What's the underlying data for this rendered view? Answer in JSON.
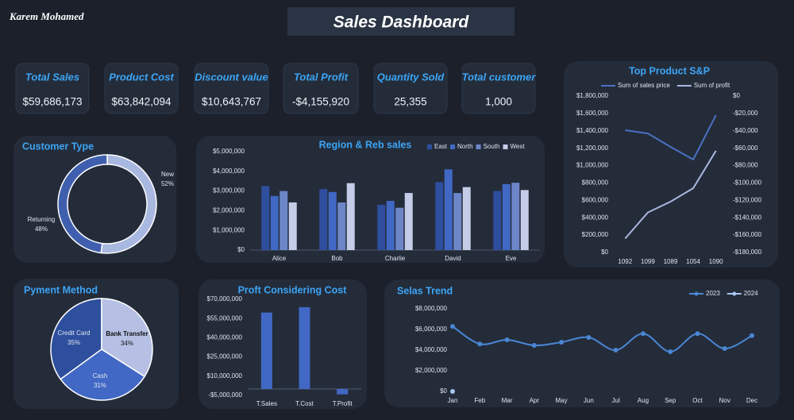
{
  "header": {
    "author": "Karem Mohamed",
    "title": "Sales Dashboard"
  },
  "kpis": [
    {
      "label": "Total Sales",
      "value": "$59,686,173"
    },
    {
      "label": "Product Cost",
      "value": "$63,842,094"
    },
    {
      "label": "Discount value",
      "value": "$10,643,767"
    },
    {
      "label": "Total Profit",
      "value": "-$4,155,920"
    },
    {
      "label": "Quantity Sold",
      "value": "25,355"
    },
    {
      "label": "Total customer",
      "value": "1,000"
    }
  ],
  "chart_data": [
    {
      "type": "doughnut",
      "title": "Customer Type",
      "categories": [
        "New",
        "Returning"
      ],
      "values": [
        52,
        48
      ],
      "value_labels": [
        "52%",
        "48%"
      ],
      "colors": [
        "#a9b8e0",
        "#3f5fae"
      ]
    },
    {
      "type": "bar",
      "title": "Region & Reb sales",
      "categories": [
        "Alice",
        "Bob",
        "Charlie",
        "David",
        "Eve"
      ],
      "series": [
        {
          "name": "East",
          "color": "#2e4f9e",
          "values": [
            3250000,
            3100000,
            2300000,
            3450000,
            3000000
          ]
        },
        {
          "name": "North",
          "color": "#4068c4",
          "values": [
            2750000,
            2950000,
            2500000,
            4100000,
            3350000
          ]
        },
        {
          "name": "South",
          "color": "#6d86c8",
          "values": [
            3000000,
            2420000,
            2150000,
            2900000,
            3420000
          ]
        },
        {
          "name": "West",
          "color": "#c5cce8",
          "values": [
            2420000,
            3400000,
            2900000,
            3200000,
            3050000
          ]
        }
      ],
      "ylim": [
        0,
        5000000
      ],
      "yticks": [
        {
          "value": 0,
          "label": "$0"
        },
        {
          "value": 1000000,
          "label": "$1,000,000"
        },
        {
          "value": 2000000,
          "label": "$2,000,000"
        },
        {
          "value": 3000000,
          "label": "$3,000,000"
        },
        {
          "value": 4000000,
          "label": "$4,000,000"
        },
        {
          "value": 5000000,
          "label": "$5,000,000"
        }
      ],
      "legend": "top-right"
    },
    {
      "type": "line",
      "title": "Top Product  S&P",
      "categories": [
        "1092",
        "1099",
        "1089",
        "1054",
        "1090"
      ],
      "series": [
        {
          "name": "Sum of sales price",
          "color": "#4a72c4",
          "values": [
            1407000,
            1370000,
            1215000,
            1070000,
            1580000
          ]
        },
        {
          "name": "Sum of profit",
          "color": "#a9b8e0",
          "axis": "y2",
          "values": [
            -164000,
            -134000,
            -121500,
            -106000,
            -63000
          ]
        }
      ],
      "ylim": [
        0,
        1800000
      ],
      "yticks": [
        {
          "value": 0,
          "label": "$0"
        },
        {
          "value": 200000,
          "label": "$200,000"
        },
        {
          "value": 400000,
          "label": "$400,000"
        },
        {
          "value": 600000,
          "label": "$600,000"
        },
        {
          "value": 800000,
          "label": "$800,000"
        },
        {
          "value": 1000000,
          "label": "$1,000,000"
        },
        {
          "value": 1200000,
          "label": "$1,200,000"
        },
        {
          "value": 1400000,
          "label": "$1,400,000"
        },
        {
          "value": 1600000,
          "label": "$1,600,000"
        },
        {
          "value": 1800000,
          "label": "$1,800,000"
        }
      ],
      "y2lim": [
        -180000,
        0
      ],
      "y2ticks": [
        {
          "value": 0,
          "label": "$0"
        },
        {
          "value": -20000,
          "label": "-$20,000"
        },
        {
          "value": -40000,
          "label": "-$40,000"
        },
        {
          "value": -60000,
          "label": "-$60,000"
        },
        {
          "value": -80000,
          "label": "-$80,000"
        },
        {
          "value": -100000,
          "label": "-$100,000"
        },
        {
          "value": -120000,
          "label": "-$120,000"
        },
        {
          "value": -140000,
          "label": "-$140,000"
        },
        {
          "value": -160000,
          "label": "-$160,000"
        },
        {
          "value": -180000,
          "label": "-$180,000"
        }
      ],
      "legend": "top"
    },
    {
      "type": "pie",
      "title": "Pyment Method",
      "categories": [
        "Credit Card",
        "Bank Transfer",
        "Cash"
      ],
      "values": [
        35,
        34,
        31
      ],
      "value_labels": [
        "35%",
        "34%",
        "31%"
      ],
      "colors": [
        "#2e4f9e",
        "#b5c0e4",
        "#4068c4"
      ]
    },
    {
      "type": "bar",
      "title": "Proft Considering Cost",
      "categories": [
        "T.Sales",
        "T.Cost",
        "T.Profit"
      ],
      "values": [
        59686173,
        63842094,
        -4155920
      ],
      "color": "#4068c4",
      "ylim": [
        -5000000,
        70000000
      ],
      "yticks": [
        {
          "value": -5000000,
          "label": "-$5,000,000"
        },
        {
          "value": 10000000,
          "label": "$10,000,000"
        },
        {
          "value": 25000000,
          "label": "$25,000,000"
        },
        {
          "value": 40000000,
          "label": "$40,000,000"
        },
        {
          "value": 55000000,
          "label": "$55,000,000"
        },
        {
          "value": 70000000,
          "label": "$70,000,000"
        }
      ]
    },
    {
      "type": "line",
      "title": "Selas Trend",
      "smooth": true,
      "markers": true,
      "categories": [
        "Jan",
        "Feb",
        "Mar",
        "Apr",
        "May",
        "Jun",
        "Jul",
        "Aug",
        "Sep",
        "Oct",
        "Nov",
        "Dec"
      ],
      "series": [
        {
          "name": "2023",
          "color": "#4a86d4",
          "values": [
            6300000,
            4600000,
            5000000,
            4460000,
            4770000,
            5230000,
            4000000,
            5600000,
            3850000,
            5600000,
            4150000,
            5400000
          ]
        },
        {
          "name": "2024",
          "color": "#a9c4f0",
          "values": [
            0,
            null,
            null,
            null,
            null,
            null,
            null,
            null,
            null,
            null,
            null,
            null
          ]
        }
      ],
      "ylim": [
        0,
        8000000
      ],
      "yticks": [
        {
          "value": 0,
          "label": "$0"
        },
        {
          "value": 2000000,
          "label": "$2,000,000"
        },
        {
          "value": 4000000,
          "label": "$4,000,000"
        },
        {
          "value": 6000000,
          "label": "$6,000,000"
        },
        {
          "value": 8000000,
          "label": "$8,000,000"
        }
      ],
      "legend": "top-right"
    }
  ]
}
